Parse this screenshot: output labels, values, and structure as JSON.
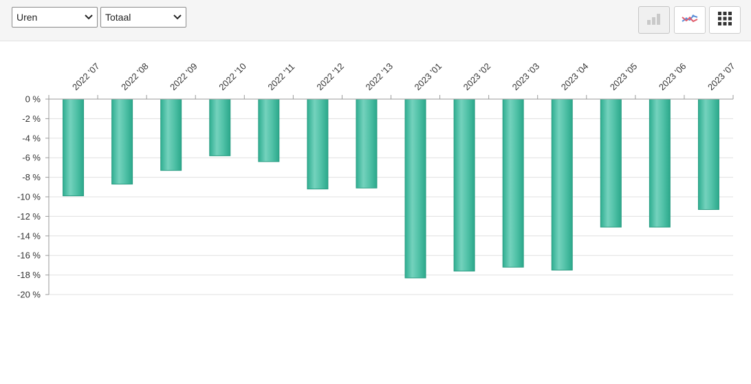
{
  "toolbar": {
    "metric_select": {
      "value": "Uren"
    },
    "scope_select": {
      "value": "Totaal"
    },
    "buttons": [
      {
        "name": "bar-chart-button",
        "icon": "bar-chart-icon"
      },
      {
        "name": "line-chart-button",
        "icon": "line-chart-icon"
      },
      {
        "name": "table-view-button",
        "icon": "grid-icon"
      }
    ]
  },
  "chart_data": {
    "type": "bar",
    "categories": [
      "2022 '07",
      "2022 '08",
      "2022 '09",
      "2022 '10",
      "2022 '11",
      "2022 '12",
      "2022 '13",
      "2023 '01",
      "2023 '02",
      "2023 '03",
      "2023 '04",
      "2023 '05",
      "2023 '06",
      "2023 '07"
    ],
    "values": [
      -9.9,
      -8.7,
      -7.3,
      -5.8,
      -6.4,
      -9.2,
      -9.1,
      -18.3,
      -17.6,
      -17.2,
      -17.5,
      -13.1,
      -13.1,
      -11.3
    ],
    "yticks": [
      "0 %",
      "-2 %",
      "-4 %",
      "-6 %",
      "-8 %",
      "-10 %",
      "-12 %",
      "-14 %",
      "-16 %",
      "-18 %",
      "-20 %"
    ],
    "ylim": [
      -20,
      0
    ],
    "title": "",
    "xlabel": "",
    "ylabel": "",
    "grid": true,
    "bar_color": "#4dbfa6"
  }
}
